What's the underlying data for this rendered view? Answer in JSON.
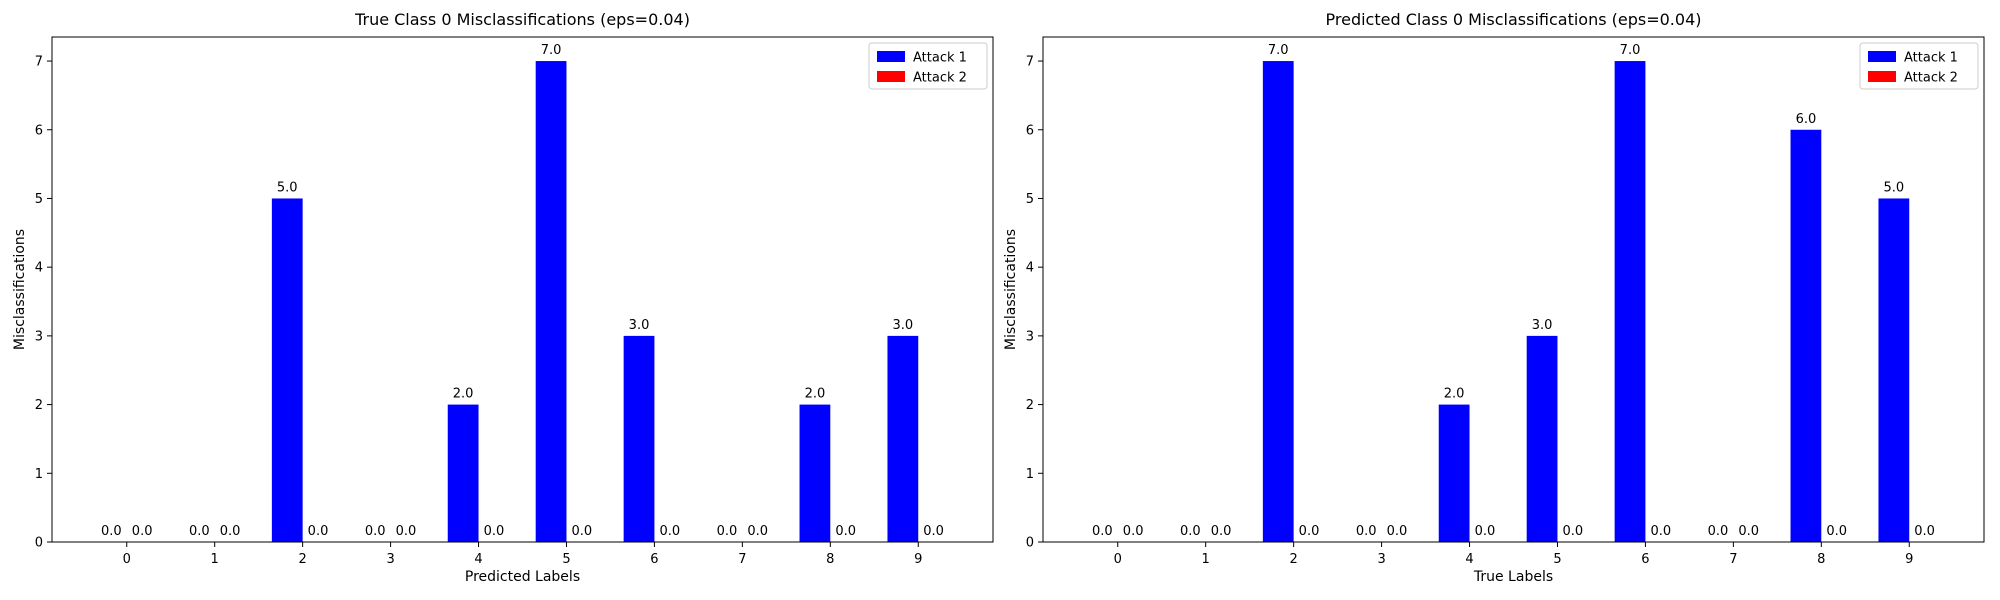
{
  "chart_data": [
    {
      "type": "bar",
      "title": "True Class 0 Misclassifications (eps=0.04)",
      "xlabel": "Predicted Labels",
      "ylabel": "Misclassifications",
      "categories": [
        "0",
        "1",
        "2",
        "3",
        "4",
        "5",
        "6",
        "7",
        "8",
        "9"
      ],
      "series": [
        {
          "name": "Attack 1",
          "color": "#0000ff",
          "values": [
            0,
            0,
            5,
            0,
            2,
            7,
            3,
            0,
            2,
            3
          ]
        },
        {
          "name": "Attack 2",
          "color": "#ff0000",
          "values": [
            0,
            0,
            0,
            0,
            0,
            0,
            0,
            0,
            0,
            0
          ]
        }
      ],
      "ylim": [
        0,
        7.35
      ],
      "yticks": [
        0,
        1,
        2,
        3,
        4,
        5,
        6,
        7
      ],
      "grid": false,
      "legend_position": "top-right",
      "data_labels": true
    },
    {
      "type": "bar",
      "title": "Predicted Class 0 Misclassifications (eps=0.04)",
      "xlabel": "True Labels",
      "ylabel": "Misclassifications",
      "categories": [
        "0",
        "1",
        "2",
        "3",
        "4",
        "5",
        "6",
        "7",
        "8",
        "9"
      ],
      "series": [
        {
          "name": "Attack 1",
          "color": "#0000ff",
          "values": [
            0,
            0,
            7,
            0,
            2,
            3,
            7,
            0,
            6,
            5
          ]
        },
        {
          "name": "Attack 2",
          "color": "#ff0000",
          "values": [
            0,
            0,
            0,
            0,
            0,
            0,
            0,
            0,
            0,
            0
          ]
        }
      ],
      "ylim": [
        0,
        7.35
      ],
      "yticks": [
        0,
        1,
        2,
        3,
        4,
        5,
        6,
        7
      ],
      "grid": false,
      "legend_position": "top-right",
      "data_labels": true
    }
  ]
}
